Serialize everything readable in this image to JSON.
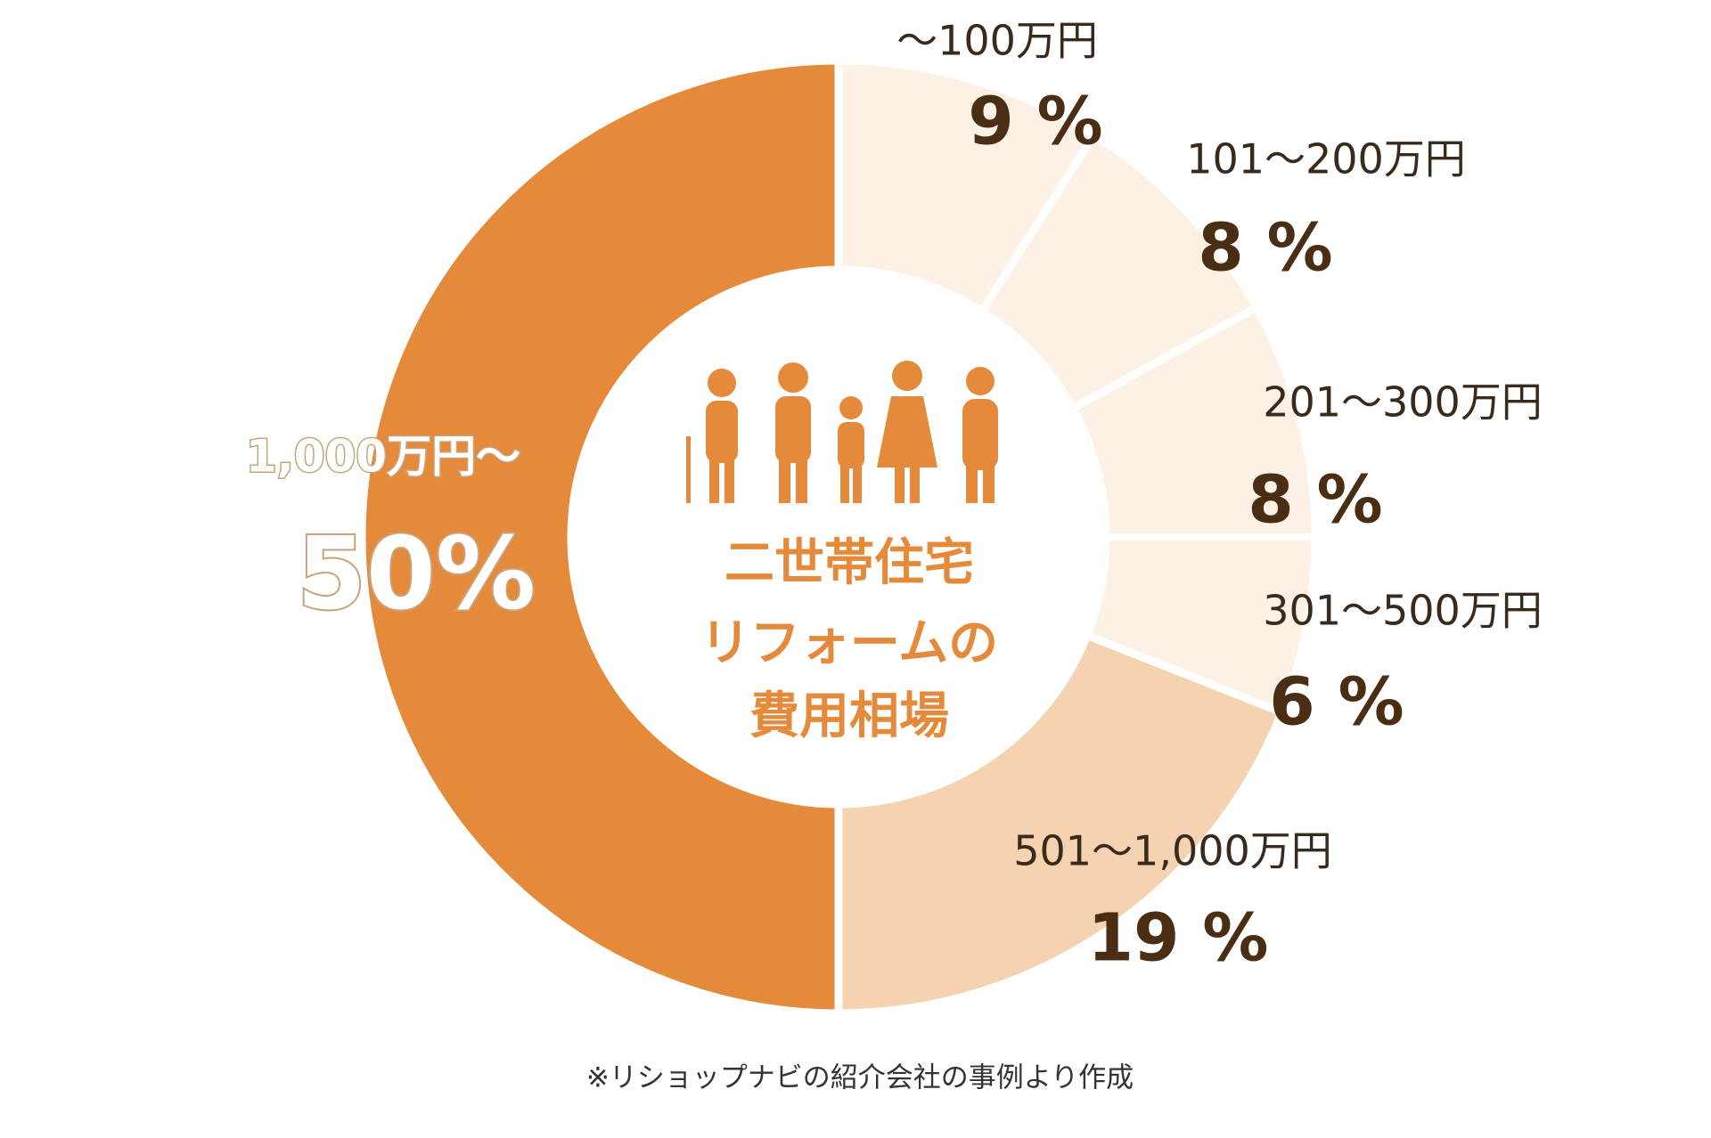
{
  "chart_data": {
    "type": "donut",
    "categories": [
      "～100万円",
      "101～200万円",
      "201～300万円",
      "301～500万円",
      "501～1,000万円",
      "1,000万円～"
    ],
    "values": [
      9,
      8,
      8,
      6,
      19,
      50
    ],
    "value_labels": [
      "9 %",
      "8 %",
      "8 %",
      "6 %",
      "19 %",
      "50%"
    ],
    "colors": [
      "#fdf0e4",
      "#fdf0e4",
      "#fdf0e4",
      "#fdf0e4",
      "#f6d3b0",
      "#e58a3a"
    ],
    "center_text": [
      "二世帯住宅",
      "リフォームの",
      "費用相場"
    ],
    "note": "※リショップナビの紹介会社の事例より作成"
  }
}
